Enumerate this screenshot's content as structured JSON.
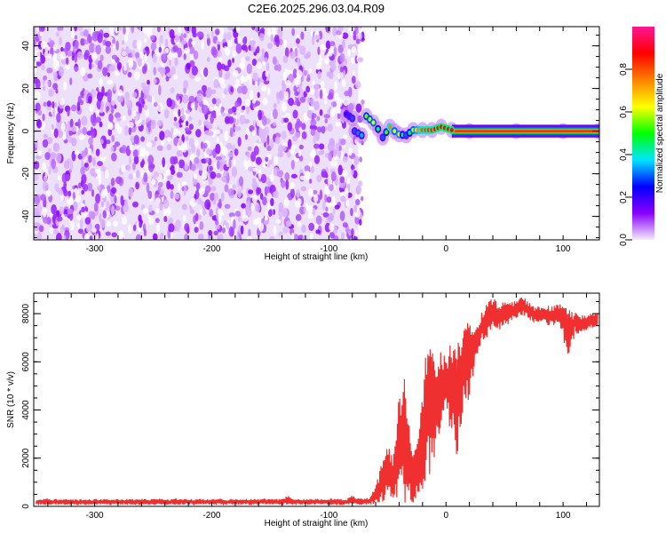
{
  "chart_data": [
    {
      "type": "heatmap",
      "title": "C2E6.2025.296.03.04.R09",
      "xlabel": "Height of straight line (km)",
      "ylabel": "Frequency (Hz)",
      "xlim": [
        -352,
        131
      ],
      "ylim": [
        -51,
        49
      ],
      "xticks": [
        -300,
        -200,
        -100,
        0,
        100
      ],
      "xtick_labels": [
        "-300",
        "-200",
        "-100",
        "0",
        "100"
      ],
      "yticks": [
        -40,
        -20,
        0,
        20,
        40
      ],
      "ytick_labels": [
        "-40",
        "-20",
        "0",
        "20",
        "40"
      ],
      "noise_region": {
        "x_range": [
          -352,
          -75
        ],
        "y_range": [
          -51,
          49
        ],
        "amplitude_range": [
          0.0,
          0.12
        ]
      },
      "signal_ridge": [
        {
          "x": -85,
          "y": 8,
          "amp": 0.25
        },
        {
          "x": -80,
          "y": 6,
          "amp": 0.3
        },
        {
          "x": -78,
          "y": 0,
          "amp": 0.3
        },
        {
          "x": -72,
          "y": -2,
          "amp": 0.35
        },
        {
          "x": -68,
          "y": 7,
          "amp": 0.55
        },
        {
          "x": -62,
          "y": 4,
          "amp": 0.6
        },
        {
          "x": -58,
          "y": 1,
          "amp": 0.45
        },
        {
          "x": -54,
          "y": -3,
          "amp": 0.3
        },
        {
          "x": -48,
          "y": 2,
          "amp": 0.75
        },
        {
          "x": -44,
          "y": 0,
          "amp": 0.6
        },
        {
          "x": -40,
          "y": -1.5,
          "amp": 0.65
        },
        {
          "x": -34,
          "y": -2,
          "amp": 0.3
        },
        {
          "x": -28,
          "y": 0.5,
          "amp": 0.6
        },
        {
          "x": -20,
          "y": 0.5,
          "amp": 0.8
        },
        {
          "x": -12,
          "y": 0.5,
          "amp": 0.85
        },
        {
          "x": -4,
          "y": 2,
          "amp": 0.9
        },
        {
          "x": 5,
          "y": 0.5,
          "amp": 0.9
        },
        {
          "x": 20,
          "y": 0,
          "amp": 0.95
        },
        {
          "x": 60,
          "y": 0,
          "amp": 0.95
        },
        {
          "x": 100,
          "y": 0,
          "amp": 0.95
        },
        {
          "x": 130,
          "y": 0,
          "amp": 0.95
        }
      ],
      "colorbar": {
        "label": "Normalized spectral amplitude",
        "range": [
          0,
          1
        ],
        "ticks": [
          "0.0",
          "0.2",
          "0.4",
          "0.6",
          "0.8"
        ],
        "tick_values": [
          0.0,
          0.2,
          0.4,
          0.6,
          0.8
        ],
        "colormap": [
          "#f4ecfc",
          "#8a00ff",
          "#0000ff",
          "#00e5ff",
          "#00ff00",
          "#ffff00",
          "#ff8000",
          "#ff0000",
          "#ff1493"
        ]
      }
    },
    {
      "type": "line",
      "title": "",
      "xlabel": "Height of straight line (km)",
      "ylabel": "SNR (10 * v/v)",
      "xlim": [
        -352,
        131
      ],
      "ylim": [
        0,
        8850
      ],
      "xticks": [
        -300,
        -200,
        -100,
        0,
        100
      ],
      "xtick_labels": [
        "-300",
        "-200",
        "-100",
        "0",
        "100"
      ],
      "yticks": [
        0,
        2000,
        4000,
        6000,
        8000
      ],
      "ytick_labels": [
        "0",
        "2000",
        "4000",
        "6000",
        "8000"
      ],
      "color": "#f03030",
      "x": [
        -350,
        -345,
        -340,
        -335,
        -330,
        -325,
        -320,
        -315,
        -310,
        -305,
        -300,
        -295,
        -290,
        -285,
        -280,
        -275,
        -270,
        -265,
        -260,
        -255,
        -250,
        -245,
        -240,
        -235,
        -230,
        -225,
        -220,
        -215,
        -210,
        -205,
        -200,
        -195,
        -190,
        -185,
        -180,
        -175,
        -170,
        -165,
        -160,
        -155,
        -150,
        -145,
        -140,
        -135,
        -130,
        -125,
        -120,
        -115,
        -110,
        -105,
        -100,
        -95,
        -90,
        -85,
        -80,
        -75,
        -70,
        -65,
        -60,
        -55,
        -50,
        -45,
        -40,
        -35,
        -30,
        -25,
        -20,
        -15,
        -10,
        -5,
        0,
        5,
        10,
        15,
        20,
        25,
        30,
        35,
        40,
        45,
        50,
        55,
        60,
        65,
        70,
        75,
        80,
        85,
        90,
        95,
        100,
        105,
        110,
        115,
        120,
        125,
        130
      ],
      "series": [
        {
          "name": "snr_min",
          "values": [
            60,
            50,
            70,
            60,
            50,
            60,
            70,
            50,
            60,
            60,
            50,
            70,
            60,
            50,
            60,
            70,
            60,
            50,
            60,
            70,
            60,
            60,
            50,
            70,
            60,
            60,
            70,
            50,
            60,
            70,
            60,
            60,
            50,
            70,
            60,
            60,
            70,
            50,
            60,
            70,
            60,
            60,
            50,
            70,
            60,
            60,
            70,
            50,
            60,
            70,
            60,
            60,
            50,
            70,
            60,
            60,
            70,
            60,
            80,
            100,
            200,
            100,
            100,
            100,
            100,
            200,
            500,
            700,
            1500,
            3000,
            4000,
            2800,
            2000,
            4000,
            4500,
            6000,
            6800,
            7000,
            7300,
            7300,
            7500,
            7600,
            7800,
            7900,
            7800,
            7600,
            7600,
            7500,
            7500,
            7500,
            6900,
            5900,
            7200,
            7100,
            7300,
            7400,
            7500
          ]
        },
        {
          "name": "snr_max",
          "values": [
            320,
            300,
            330,
            290,
            310,
            300,
            320,
            290,
            310,
            300,
            320,
            300,
            290,
            310,
            330,
            300,
            310,
            290,
            320,
            300,
            310,
            330,
            300,
            310,
            340,
            320,
            300,
            310,
            330,
            300,
            320,
            350,
            310,
            300,
            320,
            310,
            330,
            300,
            310,
            330,
            320,
            310,
            300,
            450,
            310,
            320,
            300,
            310,
            330,
            300,
            320,
            330,
            310,
            300,
            480,
            360,
            350,
            380,
            900,
            1800,
            2900,
            2000,
            5200,
            5400,
            3000,
            2500,
            4600,
            8300,
            6500,
            6800,
            6200,
            7000,
            7500,
            7600,
            7700,
            7600,
            8000,
            8400,
            8700,
            8400,
            8500,
            8500,
            8600,
            8800,
            8500,
            8300,
            8300,
            8400,
            8300,
            8400,
            8800,
            8200,
            8100,
            8000,
            7900,
            8100,
            8100
          ]
        }
      ]
    }
  ]
}
